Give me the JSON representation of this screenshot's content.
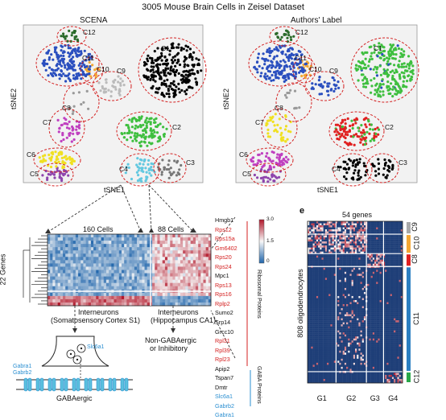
{
  "figure": {
    "title": "3005 Mouse Brain Cells in Zeisel Dataset",
    "panel_left": {
      "title": "SCENA",
      "xlabel": "tSNE1",
      "ylabel": "tSNE2",
      "clusters": [
        "C1",
        "C2",
        "C3",
        "C4",
        "C5",
        "C6",
        "C7",
        "C8",
        "C9",
        "C10",
        "C11",
        "C12"
      ]
    },
    "panel_right": {
      "title": "Authors' Label",
      "xlabel": "tSNE1",
      "ylabel": "tSNE2",
      "clusters": [
        "C1",
        "C2",
        "C3",
        "C4",
        "C5",
        "C6",
        "C7",
        "C8",
        "C9",
        "C10",
        "C11",
        "C12"
      ]
    },
    "heatmap_d": {
      "col_label_1": "160 Cells",
      "col_label_2": "88 Cells",
      "row_label": "22 Genes",
      "colorbar_ticks": [
        "3.0",
        "1.5",
        "0"
      ],
      "group_1_label_line1": "Interneurons",
      "group_1_label_line2": "(Somatosensory Cortex S1)",
      "group_2_label_line1": "Interneurons",
      "group_2_label_line2": "(Hippocampus CA1)",
      "ribosomal_label": "Ribosomal Proteins",
      "gaba_label": "GABA Proteins",
      "genes": [
        {
          "name": "Hmgb1",
          "color": "#111111"
        },
        {
          "name": "Rps12",
          "color": "#d42020"
        },
        {
          "name": "Rps15a",
          "color": "#d42020"
        },
        {
          "name": "Gm6402",
          "color": "#d42020"
        },
        {
          "name": "Rps20",
          "color": "#d42020"
        },
        {
          "name": "Rps24",
          "color": "#d42020"
        },
        {
          "name": "Mpc1",
          "color": "#111111"
        },
        {
          "name": "Rps13",
          "color": "#d42020"
        },
        {
          "name": "Rps16",
          "color": "#d42020"
        },
        {
          "name": "Rplp2",
          "color": "#d42020"
        },
        {
          "name": "Sumo2",
          "color": "#111111"
        },
        {
          "name": "Srp14",
          "color": "#111111"
        },
        {
          "name": "Grcc10",
          "color": "#111111"
        },
        {
          "name": "Rpl31",
          "color": "#d42020"
        },
        {
          "name": "Rpl39",
          "color": "#d42020"
        },
        {
          "name": "Rpl23",
          "color": "#d42020"
        },
        {
          "name": "Apip2",
          "color": "#111111"
        },
        {
          "name": "Tspan7",
          "color": "#111111"
        },
        {
          "name": "Dmtr",
          "color": "#111111"
        },
        {
          "name": "Slc6a1",
          "color": "#2b8fd1"
        },
        {
          "name": "Gabrb2",
          "color": "#2b8fd1"
        },
        {
          "name": "Gabra1",
          "color": "#2b8fd1"
        }
      ],
      "synapse_labels": {
        "slc": "Slc6a1",
        "gabra1": "Gabra1",
        "gabrb2": "Gabrb2",
        "caption": "GABAergic",
        "right_line1": "Non-GABAergic",
        "right_line2": "or Inhibitory"
      }
    },
    "heatmap_e": {
      "panel_letter": "e",
      "top_label": "54 genes",
      "y_label": "808 oligodendrocytes",
      "col_groups": [
        "G1",
        "G2",
        "G3",
        "G4"
      ],
      "row_groups": [
        {
          "name": "C9",
          "color": "#a9a9a9"
        },
        {
          "name": "C10",
          "color": "#f4a733"
        },
        {
          "name": "C8",
          "color": "#e02020"
        },
        {
          "name": "C11",
          "color": "#2b7fc1"
        },
        {
          "name": "C12",
          "color": "#2aa84a"
        }
      ]
    }
  }
}
